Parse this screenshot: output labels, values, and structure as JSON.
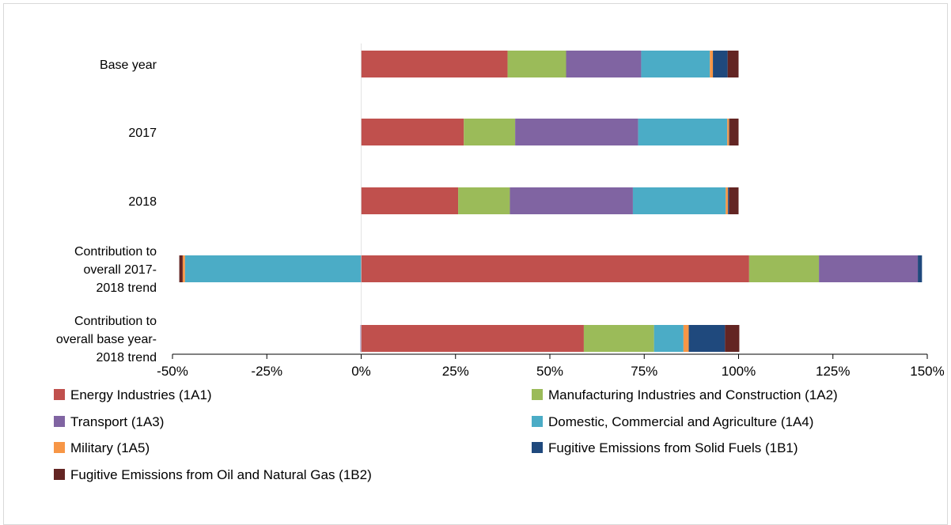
{
  "chart_data": {
    "type": "bar",
    "orientation": "horizontal",
    "stacked": true,
    "title": "",
    "xlabel": "",
    "ylabel": "",
    "xlim": [
      -50,
      150
    ],
    "x_ticks": [
      -50,
      -25,
      0,
      25,
      50,
      75,
      100,
      125,
      150
    ],
    "x_tick_labels": [
      "-50%",
      "-25%",
      "0%",
      "25%",
      "50%",
      "75%",
      "100%",
      "125%",
      "150%"
    ],
    "grid": false,
    "legend_position": "bottom",
    "categories": [
      [
        "Base year"
      ],
      [
        "2017"
      ],
      [
        "2018"
      ],
      [
        "Contribution to",
        "overall 2017-",
        "2018 trend"
      ],
      [
        "Contribution to",
        "overall base year-",
        "2018 trend"
      ]
    ],
    "series": [
      {
        "name": "Energy Industries (1A1)",
        "color": "#c0504d",
        "values": [
          38.8,
          27.2,
          25.7,
          102.8,
          59.0
        ]
      },
      {
        "name": "Manufacturing Industries and Construction (1A2)",
        "color": "#9bbb59",
        "values": [
          15.5,
          13.6,
          13.7,
          18.5,
          18.6
        ]
      },
      {
        "name": "Transport (1A3)",
        "color": "#8064a2",
        "values": [
          19.9,
          32.6,
          32.6,
          26.2,
          -0.2
        ]
      },
      {
        "name": "Domestic, Commercial and Agriculture (1A4)",
        "color": "#4bacc6",
        "values": [
          18.2,
          23.6,
          24.6,
          -46.7,
          7.8
        ]
      },
      {
        "name": "Military (1A5)",
        "color": "#f79646",
        "values": [
          0.8,
          0.5,
          0.6,
          -0.6,
          1.4
        ]
      },
      {
        "name": "Fugitive Emissions from Solid Fuels (1B1)",
        "color": "#1f497d",
        "values": [
          3.9,
          0.1,
          0.3,
          1.1,
          9.6
        ]
      },
      {
        "name": "Fugitive Emissions from Oil and Natural Gas (1B2)",
        "color": "#632523",
        "values": [
          2.9,
          2.4,
          2.5,
          -0.9,
          3.8
        ]
      }
    ]
  }
}
